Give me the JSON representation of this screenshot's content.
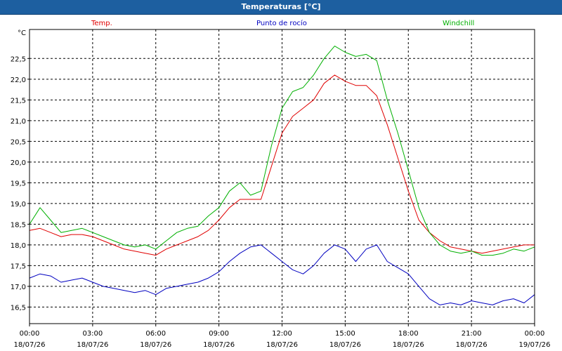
{
  "window": {
    "title": "Temperaturas [°C]"
  },
  "chart_data": {
    "type": "line",
    "title": "Temperaturas [°C]",
    "ylabel": "°C",
    "ylim": [
      16.1,
      23.2
    ],
    "yticks": [
      "16,5",
      "17,0",
      "17,5",
      "18,0",
      "18,5",
      "19,0",
      "19,5",
      "20,0",
      "20,5",
      "21,0",
      "21,5",
      "22,0",
      "22,5"
    ],
    "xticks": [
      {
        "time": "00:00",
        "date": "18/07/26"
      },
      {
        "time": "03:00",
        "date": "18/07/26"
      },
      {
        "time": "06:00",
        "date": "18/07/26"
      },
      {
        "time": "09:00",
        "date": "18/07/26"
      },
      {
        "time": "12:00",
        "date": "18/07/26"
      },
      {
        "time": "15:00",
        "date": "18/07/26"
      },
      {
        "time": "18:00",
        "date": "18/07/26"
      },
      {
        "time": "21:00",
        "date": "18/07/26"
      },
      {
        "time": "00:00",
        "date": "19/07/26"
      }
    ],
    "x_hours": [
      0,
      0.5,
      1,
      1.5,
      2,
      2.5,
      3,
      3.5,
      4,
      4.5,
      5,
      5.5,
      6,
      6.5,
      7,
      7.5,
      8,
      8.5,
      9,
      9.5,
      10,
      10.5,
      11,
      11.5,
      12,
      12.5,
      13,
      13.5,
      14,
      14.5,
      15,
      15.5,
      16,
      16.5,
      17,
      17.5,
      18,
      18.5,
      19,
      19.5,
      20,
      20.5,
      21,
      21.5,
      22,
      22.5,
      23,
      23.5,
      24
    ],
    "grid": true,
    "legend": "top",
    "series": [
      {
        "name": "Temp.",
        "color": "#e00000",
        "values": [
          18.35,
          18.4,
          18.3,
          18.2,
          18.25,
          18.25,
          18.2,
          18.1,
          18.0,
          17.9,
          17.85,
          17.8,
          17.75,
          17.9,
          18.0,
          18.1,
          18.2,
          18.35,
          18.6,
          18.9,
          19.1,
          19.1,
          19.1,
          19.9,
          20.7,
          21.1,
          21.3,
          21.5,
          21.9,
          22.1,
          21.95,
          21.85,
          21.85,
          21.6,
          20.9,
          20.1,
          19.3,
          18.6,
          18.3,
          18.1,
          17.95,
          17.9,
          17.85,
          17.8,
          17.85,
          17.9,
          17.95,
          18.0,
          18.0
        ]
      },
      {
        "name": "Punto de rocío",
        "color": "#0000c0",
        "values": [
          17.2,
          17.3,
          17.25,
          17.1,
          17.15,
          17.2,
          17.1,
          17.0,
          16.95,
          16.9,
          16.85,
          16.9,
          16.8,
          16.95,
          17.0,
          17.05,
          17.1,
          17.2,
          17.35,
          17.6,
          17.8,
          17.95,
          18.0,
          17.8,
          17.6,
          17.4,
          17.3,
          17.5,
          17.8,
          18.0,
          17.9,
          17.6,
          17.9,
          18.0,
          17.6,
          17.45,
          17.3,
          17.0,
          16.7,
          16.55,
          16.6,
          16.55,
          16.65,
          16.6,
          16.55,
          16.65,
          16.7,
          16.6,
          16.8
        ]
      },
      {
        "name": "Windchill",
        "color": "#00b000",
        "values": [
          18.5,
          18.9,
          18.6,
          18.3,
          18.35,
          18.4,
          18.3,
          18.2,
          18.1,
          18.0,
          17.95,
          18.0,
          17.9,
          18.1,
          18.3,
          18.4,
          18.45,
          18.7,
          18.9,
          19.3,
          19.5,
          19.2,
          19.3,
          20.4,
          21.3,
          21.7,
          21.8,
          22.1,
          22.5,
          22.8,
          22.65,
          22.55,
          22.6,
          22.45,
          21.5,
          20.7,
          19.8,
          18.9,
          18.3,
          18.0,
          17.85,
          17.8,
          17.85,
          17.75,
          17.75,
          17.8,
          17.9,
          17.85,
          17.95
        ]
      }
    ]
  }
}
